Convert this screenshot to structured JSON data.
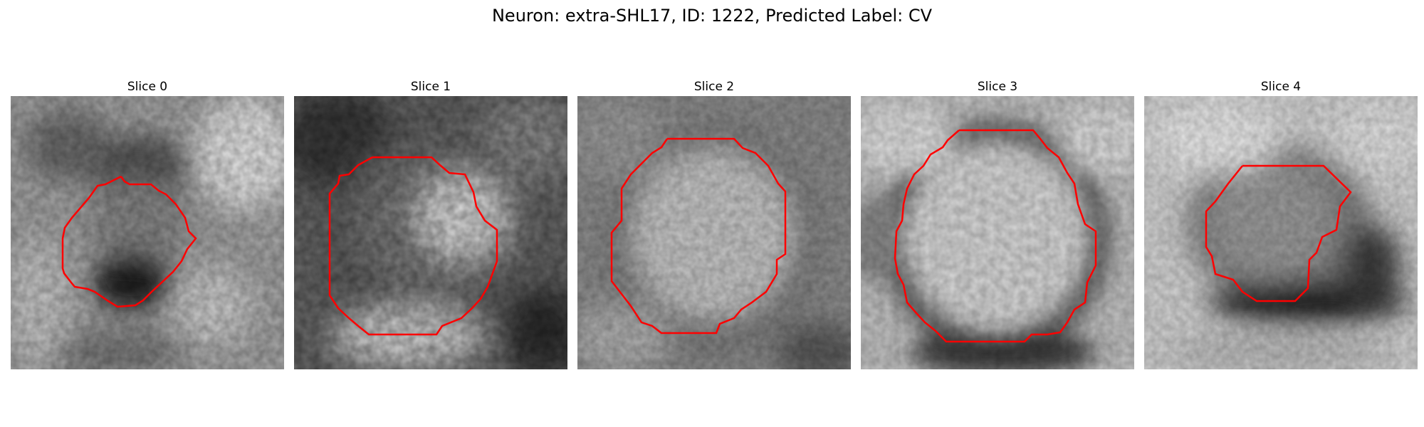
{
  "figure": {
    "title": "Neuron: extra-SHL17, ID: 1222, Predicted Label: CV"
  },
  "panels": [
    {
      "title": "Slice 0"
    },
    {
      "title": "Slice 1"
    },
    {
      "title": "Slice 2"
    },
    {
      "title": "Slice 3"
    },
    {
      "title": "Slice 4"
    }
  ],
  "colors": {
    "contour": "#ff0000",
    "background": "#ffffff",
    "colormap": "grayscale"
  }
}
